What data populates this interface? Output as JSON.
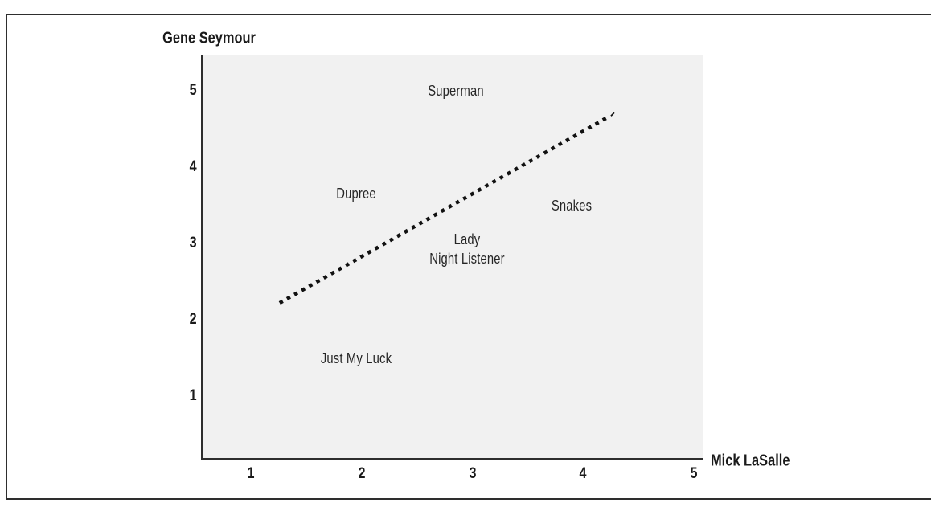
{
  "figure_caption": "",
  "chart_data": {
    "type": "scatter",
    "title": "",
    "xlabel": "Mick LaSalle",
    "ylabel": "Gene Seymour",
    "xlim": [
      0.55,
      5.1
    ],
    "ylim": [
      0.16,
      5.45
    ],
    "x_ticks": [
      "1",
      "2",
      "3",
      "4",
      "5"
    ],
    "y_ticks": [
      "1",
      "2",
      "3",
      "4",
      "5"
    ],
    "grid": false,
    "legend": "none",
    "marker_style": "text-label-only",
    "points": [
      {
        "label": "Superman",
        "x": 2.85,
        "y": 5.0
      },
      {
        "label": "Dupree",
        "x": 1.95,
        "y": 3.65
      },
      {
        "label": "Snakes",
        "x": 3.9,
        "y": 3.5
      },
      {
        "label": "Lady",
        "x": 2.95,
        "y": 3.05
      },
      {
        "label": "Night Listener",
        "x": 2.95,
        "y": 2.8
      },
      {
        "label": "Just My Luck",
        "x": 1.95,
        "y": 1.5
      }
    ],
    "best_fit_line": {
      "style": "dashed",
      "x1": 1.26,
      "y1": 2.22,
      "x2": 4.23,
      "y2": 4.66
    },
    "colors": {
      "plot_background": "#f1f1f1",
      "axis_line": "#2e2e2e",
      "fit_line": "#111111",
      "text": "#1a1a1a"
    }
  }
}
